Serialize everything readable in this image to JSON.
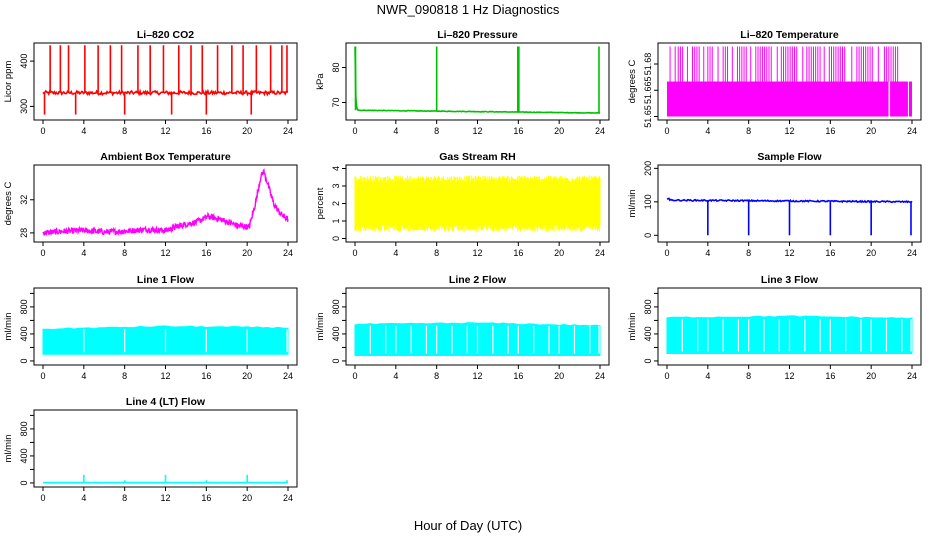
{
  "page": {
    "title": "NWR_090818  1 Hz Diagnostics",
    "x_axis_title": "Hour of Day (UTC)"
  },
  "chart_data": [
    {
      "type": "line",
      "title": "Li–820 CO2",
      "ylabel": "Licor ppm",
      "color": "#ff0000",
      "xlim": [
        0,
        24
      ],
      "ylim": [
        270,
        440
      ],
      "xticks": [
        0,
        4,
        8,
        12,
        16,
        20,
        24
      ],
      "yticks": [
        300,
        400
      ],
      "pattern": "baseline_spikes",
      "baseline": 330,
      "noise": 4,
      "spike_to": 435,
      "spike_x": [
        0.7,
        1.7,
        2.5,
        4.1,
        5.4,
        6.6,
        7.7,
        9.3,
        10.5,
        11.8,
        13.3,
        14.5,
        15.6,
        17.1,
        18.5,
        19.6,
        20.9,
        22.3,
        23.4,
        23.9
      ],
      "dip_x": [
        0.15,
        8.0,
        16.0,
        3.2,
        12.6,
        20.4
      ],
      "dip_to": 282
    },
    {
      "type": "line",
      "title": "Li–820 Pressure",
      "ylabel": "kPa",
      "color": "#00c000",
      "xlim": [
        0,
        24
      ],
      "ylim": [
        65,
        87
      ],
      "xticks": [
        0,
        4,
        8,
        12,
        16,
        20,
        24
      ],
      "yticks": [
        70,
        80
      ],
      "pattern": "baseline_spikes",
      "baseline_start": 67.8,
      "baseline_end": 67.0,
      "noise": 0.08,
      "spike_to": 86,
      "spike_x": [
        0.05,
        8.0,
        15.95,
        16.0,
        16.05,
        23.9
      ],
      "dip_x": [],
      "initial_decay": [
        86,
        67.8
      ]
    },
    {
      "type": "bar",
      "title": "Li–820 Temperature",
      "ylabel": "degrees C",
      "color": "#ff00ff",
      "xlim": [
        0,
        24
      ],
      "ylim": [
        51.648,
        51.692
      ],
      "xticks": [
        0,
        4,
        8,
        12,
        16,
        20,
        24
      ],
      "yticks": [
        51.65,
        51.665,
        51.68
      ],
      "ytick_labels": [
        "51.65",
        "51.665",
        "51.68"
      ],
      "pattern": "quantized",
      "level_low": 51.65,
      "level_high": 51.67,
      "level_top": 51.69,
      "tall_segments": [
        [
          0.3,
          0.4
        ],
        [
          0.8,
          0.9
        ],
        [
          1.1,
          1.6
        ],
        [
          2.0,
          2.1
        ],
        [
          2.5,
          3.2
        ],
        [
          3.6,
          3.7
        ],
        [
          4.0,
          4.6
        ],
        [
          5.0,
          5.1
        ],
        [
          5.5,
          6.0
        ],
        [
          6.4,
          6.5
        ],
        [
          6.9,
          7.8
        ],
        [
          8.2,
          8.3
        ],
        [
          8.7,
          10.4
        ],
        [
          10.8,
          10.9
        ],
        [
          11.2,
          12.9
        ],
        [
          13.3,
          13.4
        ],
        [
          13.7,
          15.0
        ],
        [
          15.4,
          15.5
        ],
        [
          15.9,
          17.6
        ],
        [
          18.1,
          18.2
        ],
        [
          18.6,
          20.2
        ],
        [
          20.7,
          20.8
        ],
        [
          21.3,
          22.8
        ]
      ],
      "gaps": [
        [
          21.7,
          21.85
        ],
        [
          23.6,
          23.7
        ]
      ]
    },
    {
      "type": "line",
      "title": "Ambient Box Temperature",
      "ylabel": "degrees C",
      "color": "#ff00ff",
      "xlim": [
        0,
        24
      ],
      "ylim": [
        26.9,
        36.2
      ],
      "xticks": [
        0,
        4,
        8,
        12,
        16,
        20,
        24
      ],
      "yticks": [
        28,
        32
      ],
      "pattern": "smooth_noisy",
      "noise": 0.35,
      "x": [
        0,
        2,
        4,
        6,
        8,
        10,
        12,
        13.5,
        15,
        16.2,
        17.5,
        19,
        20.2,
        20.8,
        21.3,
        21.6,
        22,
        22.6,
        23.2,
        24
      ],
      "y": [
        28.0,
        28.2,
        28.3,
        28.1,
        28.2,
        28.4,
        28.3,
        28.9,
        29.3,
        30.0,
        29.6,
        28.9,
        28.7,
        31.5,
        34.6,
        35.5,
        34.0,
        31.5,
        30.4,
        29.6
      ]
    },
    {
      "type": "area",
      "title": "Gas Stream RH",
      "ylabel": "percent",
      "color": "#ffff00",
      "xlim": [
        0,
        24
      ],
      "ylim": [
        -0.2,
        4.2
      ],
      "xticks": [
        0,
        4,
        8,
        12,
        16,
        20,
        24
      ],
      "yticks": [
        0,
        1,
        2,
        3,
        4
      ],
      "pattern": "noise_band",
      "center": 2.0,
      "amplitude": 1.6
    },
    {
      "type": "line",
      "title": "Sample Flow",
      "ylabel": "ml/min",
      "color": "#0000ff",
      "xlim": [
        0,
        24
      ],
      "ylim": [
        -20,
        210
      ],
      "xticks": [
        0,
        4,
        8,
        12,
        16,
        20,
        24
      ],
      "yticks": [
        0,
        100,
        200
      ],
      "pattern": "baseline_spikes",
      "baseline_start": 105,
      "baseline_end": 100,
      "noise": 2,
      "spike_x": [],
      "dip_x": [
        4.0,
        8.0,
        12.0,
        16.0,
        20.0,
        23.9
      ],
      "dip_to": 0,
      "start_level": 110
    },
    {
      "type": "area",
      "title": "Line 1 Flow",
      "ylabel": "ml/min",
      "color": "#00ffff",
      "xlim": [
        0,
        24
      ],
      "ylim": [
        -60,
        1080
      ],
      "xticks": [
        0,
        4,
        8,
        12,
        16,
        20,
        24
      ],
      "yticks": [
        0,
        200,
        400,
        600,
        800,
        1000
      ],
      "ytick_labels": [
        "0",
        "400",
        "800"
      ],
      "ytick_label_values": [
        0,
        400,
        800
      ],
      "pattern": "flow_band",
      "low": 100,
      "high_start": 470,
      "high_mid": 510,
      "high_end": 490,
      "notch_x": [
        4.0,
        8.0,
        12.0,
        16.0,
        20.0,
        23.9
      ]
    },
    {
      "type": "area",
      "title": "Line 2 Flow",
      "ylabel": "ml/min",
      "color": "#00ffff",
      "xlim": [
        0,
        24
      ],
      "ylim": [
        -60,
        1080
      ],
      "xticks": [
        0,
        4,
        8,
        12,
        16,
        20,
        24
      ],
      "yticks": [
        0,
        200,
        400,
        600,
        800,
        1000
      ],
      "ytick_labels": [
        "0",
        "400",
        "800"
      ],
      "ytick_label_values": [
        0,
        400,
        800
      ],
      "pattern": "flow_band",
      "low": 80,
      "high_start": 540,
      "high_mid": 560,
      "high_end": 520,
      "notch_x": [
        1.5,
        3.0,
        4.0,
        5.5,
        7.0,
        8.0,
        9.5,
        11.0,
        12.0,
        13.5,
        15.0,
        16.0,
        17.5,
        19.0,
        20.0,
        21.5,
        23.0,
        23.9
      ]
    },
    {
      "type": "area",
      "title": "Line 3 Flow",
      "ylabel": "ml/min",
      "color": "#00ffff",
      "xlim": [
        0,
        24
      ],
      "ylim": [
        -60,
        1080
      ],
      "xticks": [
        0,
        4,
        8,
        12,
        16,
        20,
        24
      ],
      "yticks": [
        0,
        200,
        400,
        600,
        800,
        1000
      ],
      "ytick_labels": [
        "0",
        "400",
        "800"
      ],
      "ytick_label_values": [
        0,
        400,
        800
      ],
      "pattern": "flow_band",
      "low": 110,
      "high_start": 640,
      "high_mid": 660,
      "high_end": 630,
      "notch_x": [
        1.5,
        3.0,
        4.0,
        5.5,
        7.0,
        8.0,
        9.5,
        11.0,
        12.0,
        13.5,
        15.0,
        16.0,
        17.5,
        19.0,
        20.0,
        21.5,
        23.0,
        23.9
      ]
    },
    {
      "type": "line",
      "title": "Line 4 (LT) Flow",
      "ylabel": "ml/min",
      "color": "#00ffff",
      "xlim": [
        0,
        24
      ],
      "ylim": [
        -60,
        1080
      ],
      "xticks": [
        0,
        4,
        8,
        12,
        16,
        20,
        24
      ],
      "yticks": [
        0,
        200,
        400,
        600,
        800,
        1000
      ],
      "ytick_labels": [
        "0",
        "400",
        "800"
      ],
      "ytick_label_values": [
        0,
        400,
        800
      ],
      "pattern": "baseline_spikes",
      "baseline": 5,
      "noise": 1,
      "spike_x": [
        4.0,
        8.0,
        12.0,
        16.0,
        20.0,
        23.9
      ],
      "spike_heights": [
        120,
        40,
        120,
        40,
        120,
        40
      ],
      "dip_x": []
    }
  ]
}
